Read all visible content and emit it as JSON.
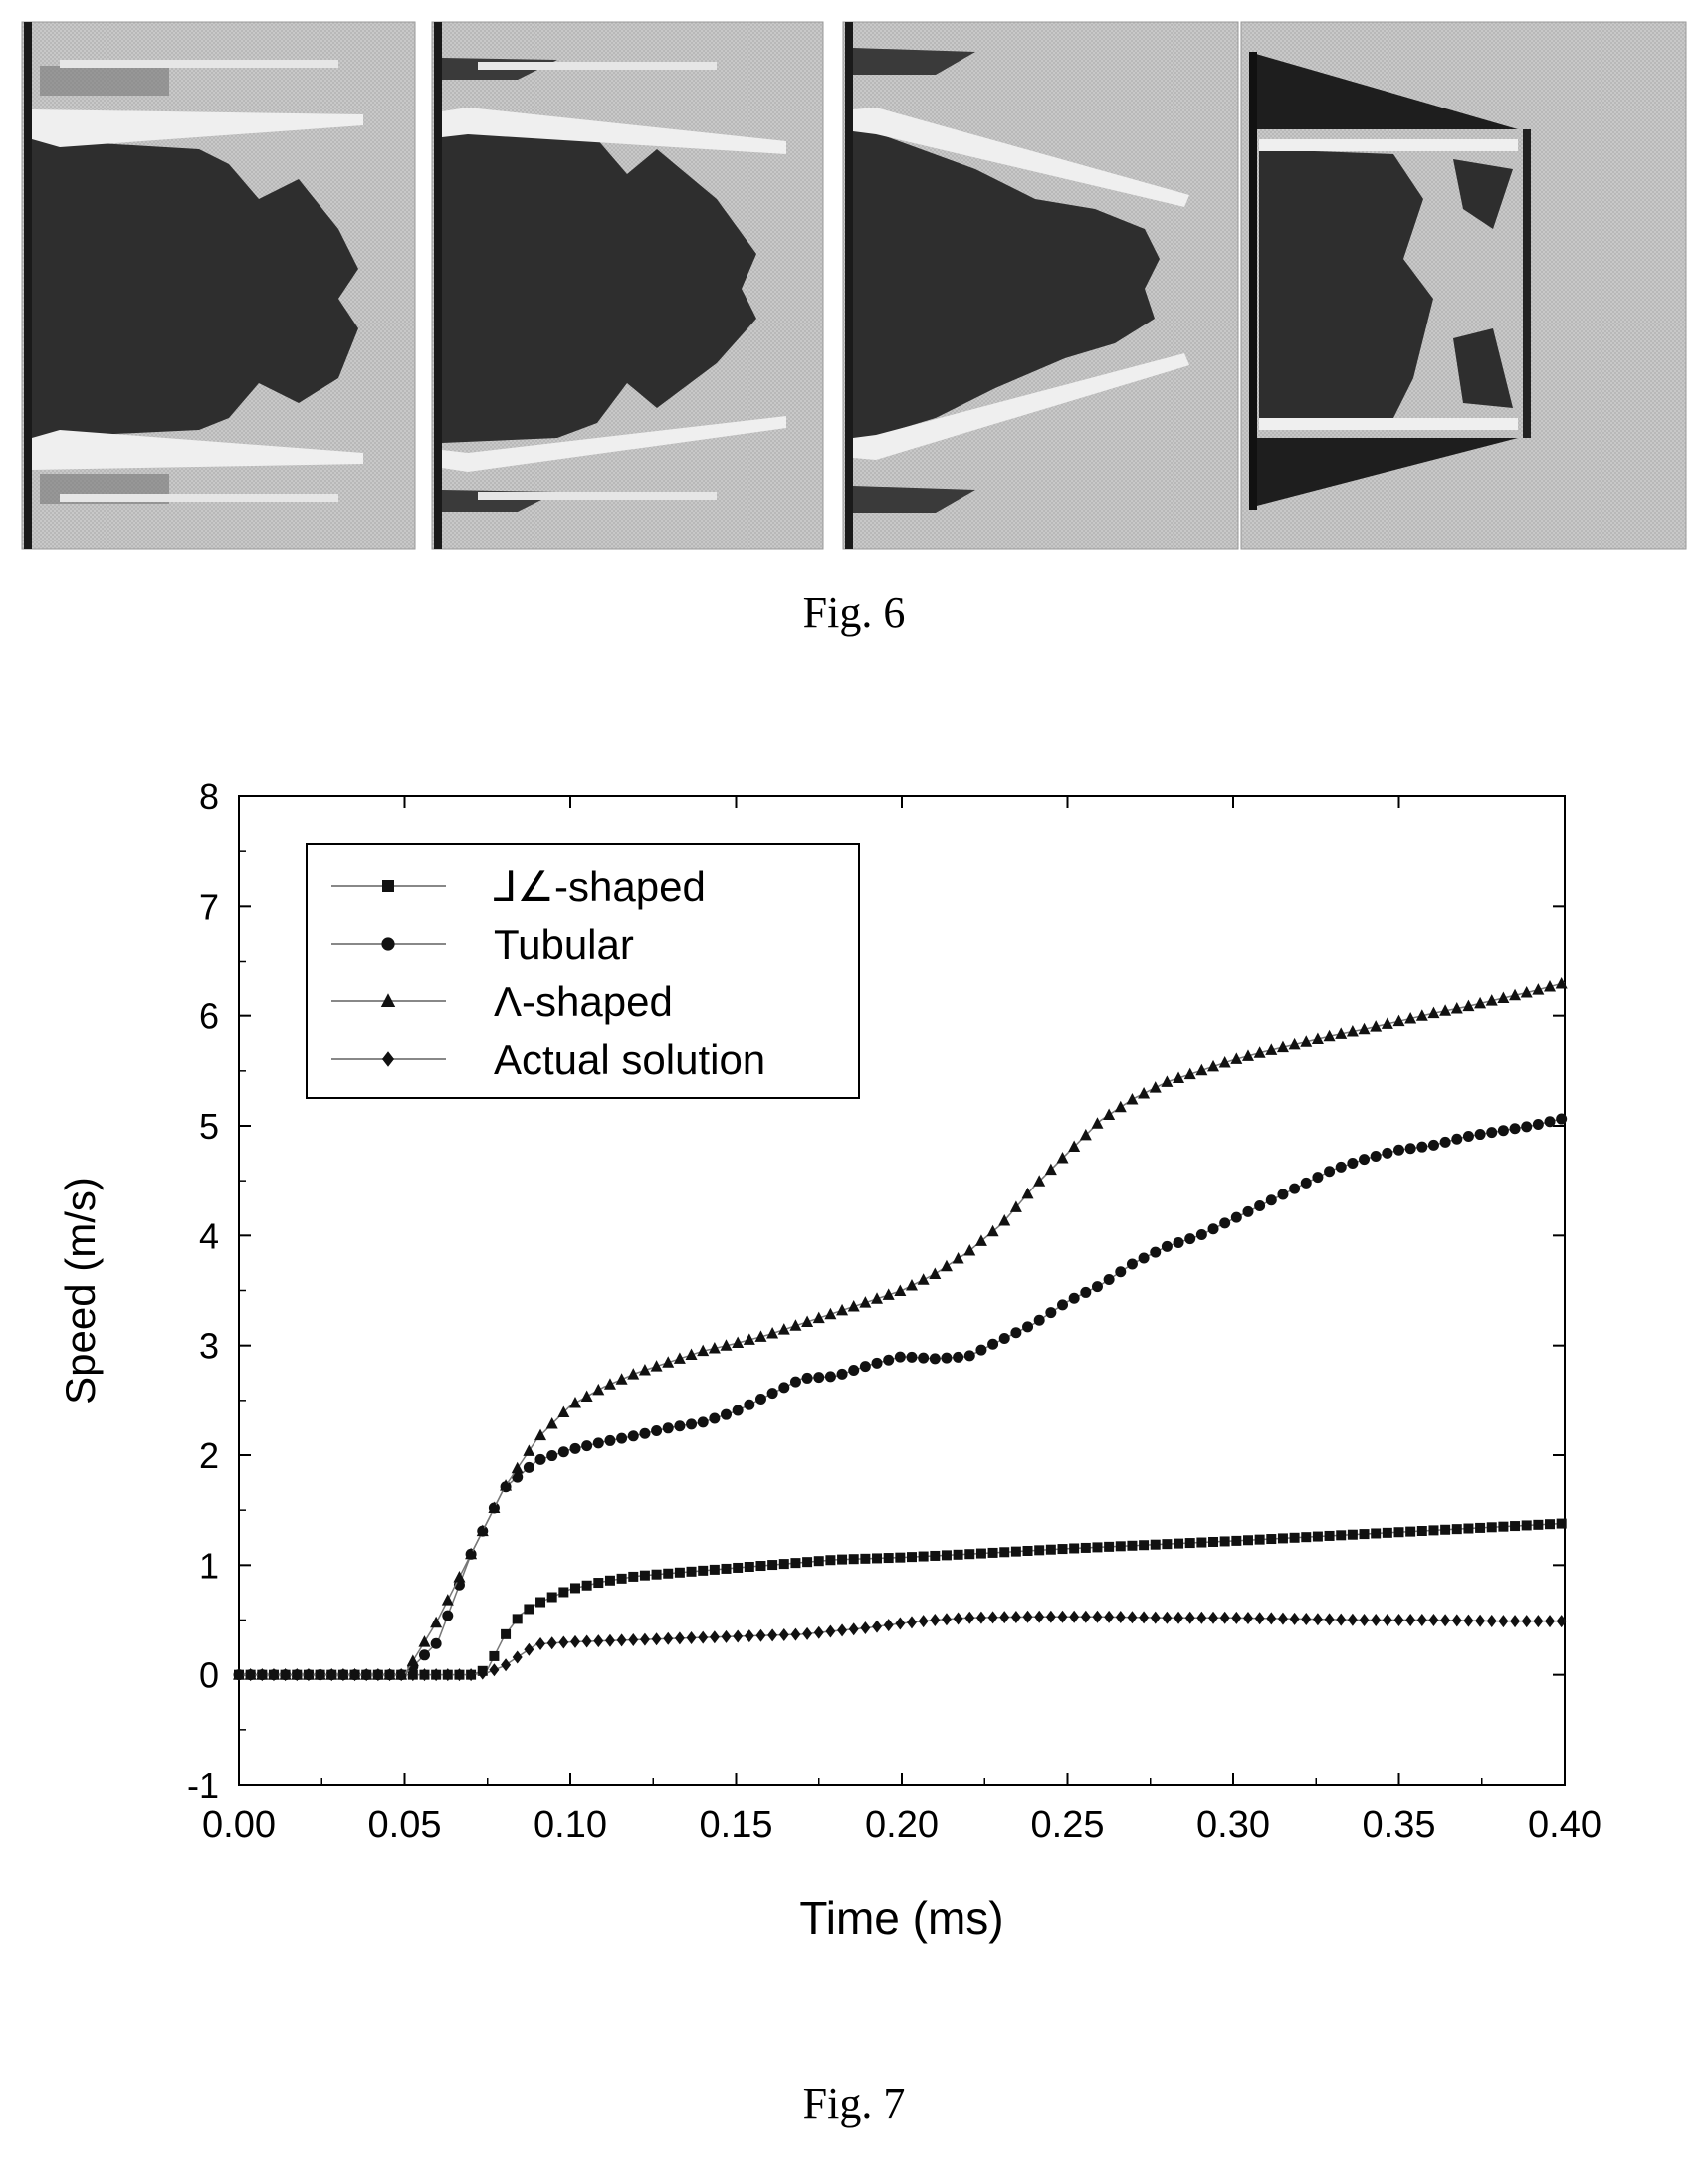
{
  "figure6": {
    "caption": "Fig. 6",
    "panels": [
      {
        "name": "panel-1"
      },
      {
        "name": "panel-2"
      },
      {
        "name": "panel-3"
      },
      {
        "name": "panel-4"
      }
    ]
  },
  "figure7": {
    "caption": "Fig. 7"
  },
  "colors": {
    "background": "#ffffff",
    "panel_gray": "#c4c4c4",
    "dark_region": "#2e2e2e",
    "light_band": "#ececec",
    "series": "#111111"
  },
  "chart_data": {
    "type": "line",
    "title": "",
    "xlabel": "Time (ms)",
    "ylabel": "Speed (m/s)",
    "xlim": [
      0.0,
      0.4
    ],
    "ylim": [
      -1,
      8
    ],
    "xticks": [
      "0.00",
      "0.05",
      "0.10",
      "0.15",
      "0.20",
      "0.25",
      "0.30",
      "0.35",
      "0.40"
    ],
    "yticks": [
      "-1",
      "0",
      "1",
      "2",
      "3",
      "4",
      "5",
      "6",
      "7",
      "8"
    ],
    "legend_position": "top-left",
    "series": [
      {
        "name": "⅃∠-shaped",
        "marker": "square",
        "x": [
          0.0,
          0.02,
          0.04,
          0.06,
          0.07,
          0.075,
          0.08,
          0.085,
          0.09,
          0.1,
          0.11,
          0.12,
          0.14,
          0.16,
          0.18,
          0.2,
          0.22,
          0.25,
          0.3,
          0.35,
          0.4
        ],
        "y": [
          0,
          0,
          0,
          0,
          0,
          0.05,
          0.35,
          0.55,
          0.65,
          0.78,
          0.85,
          0.9,
          0.95,
          1.0,
          1.05,
          1.07,
          1.1,
          1.15,
          1.22,
          1.3,
          1.38
        ]
      },
      {
        "name": "Tubular",
        "marker": "circle",
        "x": [
          0.0,
          0.02,
          0.04,
          0.05,
          0.06,
          0.07,
          0.08,
          0.09,
          0.1,
          0.11,
          0.12,
          0.13,
          0.14,
          0.15,
          0.16,
          0.17,
          0.18,
          0.19,
          0.2,
          0.21,
          0.22,
          0.23,
          0.24,
          0.25,
          0.26,
          0.27,
          0.28,
          0.29,
          0.3,
          0.31,
          0.32,
          0.33,
          0.34,
          0.35,
          0.36,
          0.37,
          0.38,
          0.39,
          0.4
        ],
        "y": [
          0,
          0,
          0,
          0,
          0.3,
          1.1,
          1.7,
          1.95,
          2.05,
          2.12,
          2.18,
          2.25,
          2.3,
          2.4,
          2.55,
          2.7,
          2.72,
          2.82,
          2.9,
          2.88,
          2.9,
          3.05,
          3.2,
          3.4,
          3.55,
          3.75,
          3.9,
          4.0,
          4.15,
          4.3,
          4.45,
          4.6,
          4.7,
          4.78,
          4.82,
          4.9,
          4.95,
          5.0,
          5.07
        ]
      },
      {
        "name": "Λ-shaped",
        "marker": "triangle",
        "x": [
          0.0,
          0.02,
          0.04,
          0.05,
          0.06,
          0.07,
          0.08,
          0.09,
          0.1,
          0.11,
          0.12,
          0.13,
          0.14,
          0.15,
          0.16,
          0.17,
          0.18,
          0.19,
          0.2,
          0.21,
          0.22,
          0.23,
          0.24,
          0.25,
          0.26,
          0.27,
          0.28,
          0.29,
          0.3,
          0.31,
          0.32,
          0.33,
          0.34,
          0.35,
          0.36,
          0.37,
          0.38,
          0.39,
          0.4
        ],
        "y": [
          0,
          0,
          0,
          0,
          0.5,
          1.1,
          1.7,
          2.15,
          2.45,
          2.62,
          2.75,
          2.85,
          2.95,
          3.02,
          3.1,
          3.2,
          3.3,
          3.4,
          3.5,
          3.65,
          3.85,
          4.1,
          4.45,
          4.75,
          5.05,
          5.25,
          5.4,
          5.5,
          5.6,
          5.68,
          5.75,
          5.82,
          5.88,
          5.95,
          6.02,
          6.08,
          6.15,
          6.22,
          6.3
        ]
      },
      {
        "name": "Actual solution",
        "marker": "diamond",
        "x": [
          0.0,
          0.02,
          0.04,
          0.06,
          0.07,
          0.075,
          0.08,
          0.085,
          0.09,
          0.1,
          0.11,
          0.12,
          0.13,
          0.14,
          0.15,
          0.16,
          0.17,
          0.18,
          0.19,
          0.2,
          0.21,
          0.22,
          0.24,
          0.26,
          0.28,
          0.3,
          0.32,
          0.34,
          0.36,
          0.38,
          0.4
        ],
        "y": [
          0,
          0,
          0,
          0,
          0,
          0.02,
          0.08,
          0.18,
          0.28,
          0.3,
          0.31,
          0.32,
          0.33,
          0.34,
          0.35,
          0.36,
          0.37,
          0.4,
          0.43,
          0.47,
          0.5,
          0.52,
          0.53,
          0.53,
          0.52,
          0.52,
          0.51,
          0.5,
          0.5,
          0.49,
          0.49
        ]
      }
    ]
  }
}
